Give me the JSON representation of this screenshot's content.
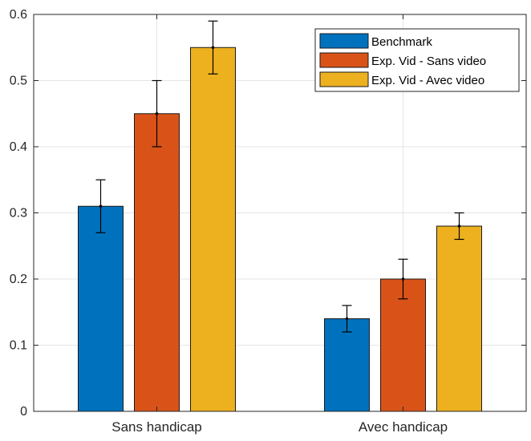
{
  "chart_data": {
    "type": "bar",
    "title": "",
    "xlabel": "",
    "ylabel": "",
    "categories": [
      "Sans handicap",
      "Avec handicap"
    ],
    "series": [
      {
        "name": "Benchmark",
        "color": "#0072BD",
        "values": [
          0.31,
          0.14
        ],
        "err_low": [
          0.27,
          0.12
        ],
        "err_high": [
          0.35,
          0.16
        ]
      },
      {
        "name": "Exp. Vid - Sans video",
        "color": "#D95319",
        "values": [
          0.45,
          0.2
        ],
        "err_low": [
          0.4,
          0.17
        ],
        "err_high": [
          0.5,
          0.23
        ]
      },
      {
        "name": "Exp. Vid - Avec video",
        "color": "#EDB120",
        "values": [
          0.55,
          0.28
        ],
        "err_low": [
          0.51,
          0.26
        ],
        "err_high": [
          0.59,
          0.3
        ]
      }
    ],
    "ylim": [
      0,
      0.6
    ],
    "yticks": [
      0,
      0.1,
      0.2,
      0.3,
      0.4,
      0.5,
      0.6
    ],
    "ytick_labels": [
      "0",
      "0.1",
      "0.2",
      "0.3",
      "0.4",
      "0.5",
      "0.6"
    ],
    "grid": true,
    "legend_position": "top-right"
  }
}
